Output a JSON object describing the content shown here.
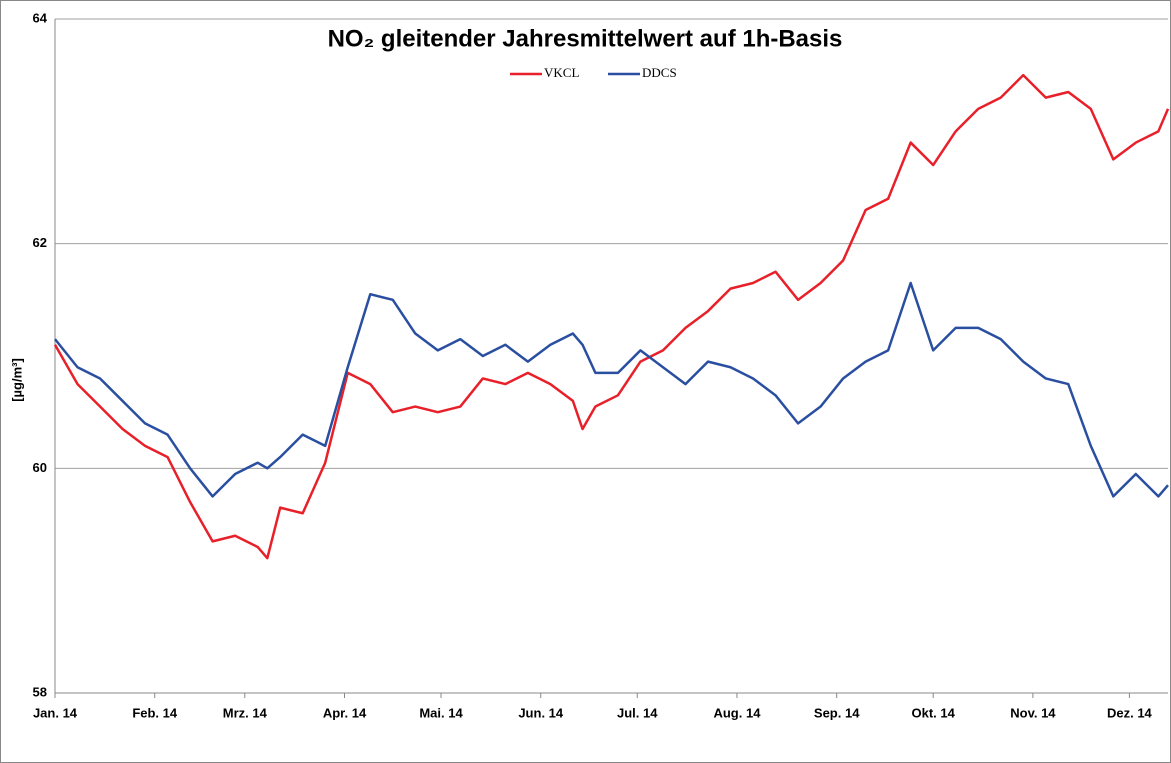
{
  "chart_data": {
    "type": "line",
    "title": "NO₂ gleitender Jahresmittelwert auf 1h-Basis",
    "y_label": "[µg/m³]",
    "x": [
      0,
      7,
      14,
      21,
      28,
      35,
      42,
      49,
      56,
      63,
      66,
      70,
      77,
      84,
      91,
      98,
      105,
      112,
      119,
      126,
      133,
      140,
      147,
      154,
      161,
      164,
      168,
      175,
      182,
      189,
      196,
      203,
      210,
      217,
      224,
      231,
      238,
      245,
      252,
      259,
      266,
      273,
      280,
      287,
      294,
      301,
      308,
      315,
      322,
      329,
      336,
      343,
      346
    ],
    "series": [
      {
        "name": "VKCL",
        "color": "#e8202a",
        "values": [
          61.1,
          60.75,
          60.55,
          60.35,
          60.2,
          60.1,
          59.7,
          59.35,
          59.4,
          59.3,
          59.2,
          59.65,
          59.6,
          60.05,
          60.85,
          60.75,
          60.5,
          60.55,
          60.5,
          60.55,
          60.8,
          60.75,
          60.85,
          60.75,
          60.6,
          60.35,
          60.55,
          60.65,
          60.95,
          61.05,
          61.25,
          61.4,
          61.6,
          61.65,
          61.75,
          61.5,
          61.65,
          61.85,
          62.3,
          62.4,
          62.9,
          62.7,
          63.0,
          63.2,
          63.3,
          63.5,
          63.3,
          63.35,
          63.2,
          62.75,
          62.9,
          63.0,
          63.2
        ]
      },
      {
        "name": "DDCS",
        "color": "#2a4fa0",
        "values": [
          61.15,
          60.9,
          60.8,
          60.6,
          60.4,
          60.3,
          60.0,
          59.75,
          59.95,
          60.05,
          60.0,
          60.1,
          60.3,
          60.2,
          60.9,
          61.55,
          61.5,
          61.2,
          61.05,
          61.15,
          61.0,
          61.1,
          60.95,
          61.1,
          61.2,
          61.1,
          60.85,
          60.85,
          61.05,
          60.9,
          60.75,
          60.95,
          60.9,
          60.8,
          60.65,
          60.4,
          60.55,
          60.8,
          60.95,
          61.05,
          61.65,
          61.05,
          61.25,
          61.25,
          61.15,
          60.95,
          60.8,
          60.75,
          60.2,
          59.75,
          59.95,
          59.75,
          59.85
        ]
      }
    ],
    "xlim": [
      0,
      346
    ],
    "xticks": [
      {
        "value": 0,
        "label": "Jan. 14"
      },
      {
        "value": 31,
        "label": "Feb. 14"
      },
      {
        "value": 59,
        "label": "Mrz. 14"
      },
      {
        "value": 90,
        "label": "Apr. 14"
      },
      {
        "value": 120,
        "label": "Mai. 14"
      },
      {
        "value": 151,
        "label": "Jun. 14"
      },
      {
        "value": 181,
        "label": "Jul. 14"
      },
      {
        "value": 212,
        "label": "Aug. 14"
      },
      {
        "value": 243,
        "label": "Sep. 14"
      },
      {
        "value": 273,
        "label": "Okt. 14"
      },
      {
        "value": 304,
        "label": "Nov. 14"
      },
      {
        "value": 334,
        "label": "Dez. 14"
      }
    ],
    "ylim": [
      58,
      64
    ],
    "yticks": [
      58,
      60,
      62,
      64
    ],
    "grid": true,
    "legend": "top"
  }
}
